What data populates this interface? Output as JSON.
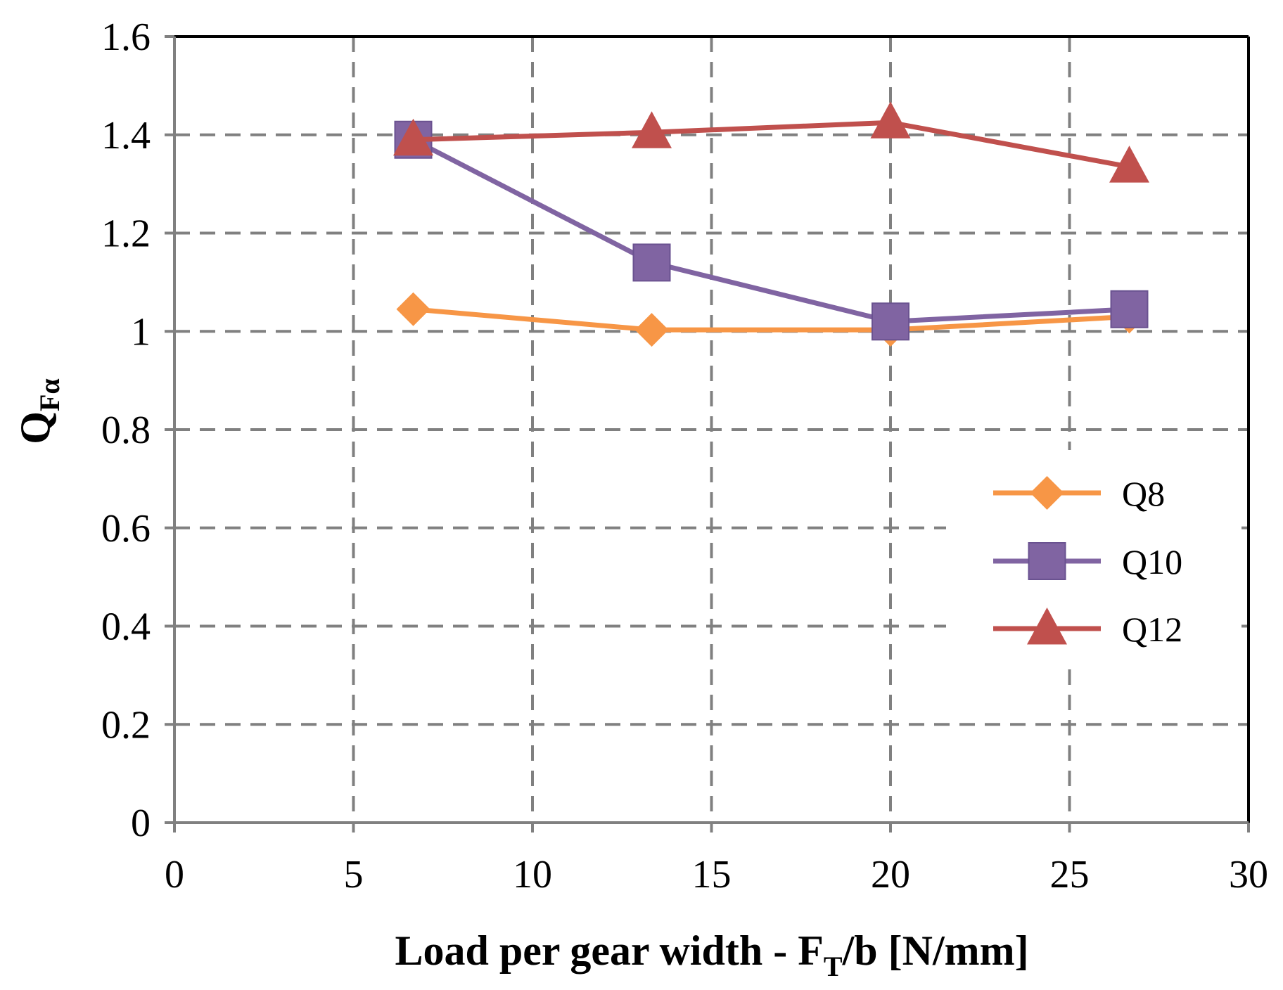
{
  "chart_data": {
    "type": "line",
    "title": "",
    "xlabel": {
      "main": "Load per gear width - F",
      "sub": "T",
      "tail": "/b [N/mm]"
    },
    "ylabel": {
      "main": "Q",
      "sub": "Fα"
    },
    "xlim": [
      0,
      30
    ],
    "ylim": [
      0,
      1.6
    ],
    "xticks": [
      0,
      5,
      10,
      15,
      20,
      25,
      30
    ],
    "yticks": [
      0,
      0.2,
      0.4,
      0.6,
      0.8,
      1,
      1.2,
      1.4,
      1.6
    ],
    "xtick_labels": [
      "0",
      "5",
      "10",
      "15",
      "20",
      "25",
      "30"
    ],
    "ytick_labels": [
      "0",
      "0.2",
      "0.4",
      "0.6",
      "0.8",
      "1",
      "1.2",
      "1.4",
      "1.6"
    ],
    "grid": true,
    "legend_position": "right",
    "x": [
      6.67,
      13.33,
      20.0,
      26.67
    ],
    "series": [
      {
        "name": "Q8",
        "marker": "diamond",
        "color": "#F79646",
        "values": [
          1.045,
          1.003,
          1.003,
          1.03
        ]
      },
      {
        "name": "Q10",
        "marker": "square",
        "color": "#8064A2",
        "values": [
          1.39,
          1.14,
          1.02,
          1.045
        ]
      },
      {
        "name": "Q12",
        "marker": "triangle",
        "color": "#C0504D",
        "values": [
          1.39,
          1.405,
          1.425,
          1.335
        ]
      }
    ]
  }
}
